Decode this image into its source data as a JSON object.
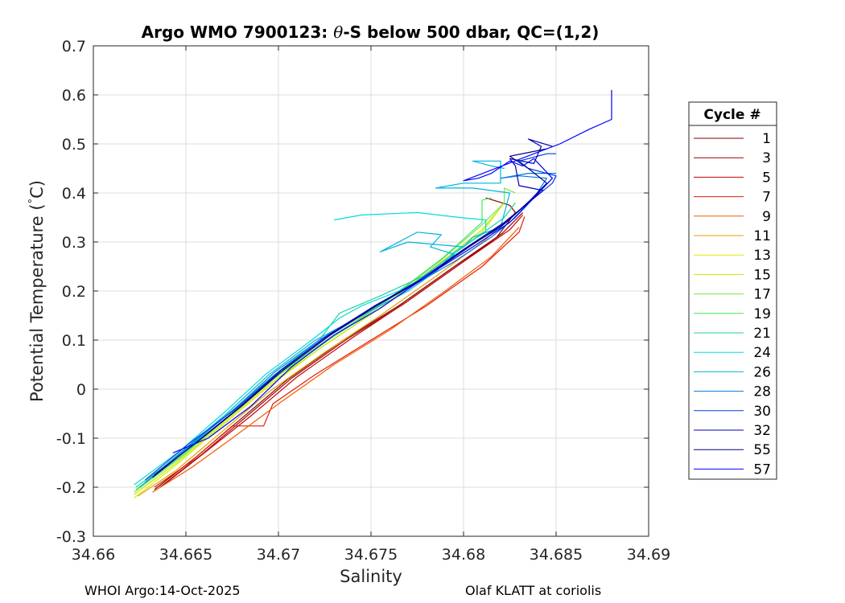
{
  "chart_data": {
    "type": "line",
    "title_prefix": "Argo WMO 7900123: ",
    "title_theta": "θ",
    "title_suffix": "-S below 500 dbar,  QC=(1,2)",
    "xlabel": "Salinity",
    "ylabel_prefix": "Potential Temperature (",
    "ylabel_degree": "°",
    "ylabel_suffix": "C)",
    "xlim": [
      34.66,
      34.69
    ],
    "ylim": [
      -0.3,
      0.7
    ],
    "xticks": [
      34.66,
      34.665,
      34.67,
      34.675,
      34.68,
      34.685,
      34.69
    ],
    "xtick_labels": [
      "34.66",
      "34.665",
      "34.67",
      "34.675",
      "34.68",
      "34.685",
      "34.69"
    ],
    "yticks": [
      -0.3,
      -0.2,
      -0.1,
      0,
      0.1,
      0.2,
      0.3,
      0.4,
      0.5,
      0.6,
      0.7
    ],
    "ytick_labels": [
      "-0.3",
      "-0.2",
      "-0.1",
      "0",
      "0.1",
      "0.2",
      "0.3",
      "0.4",
      "0.5",
      "0.6",
      "0.7"
    ],
    "grid": true,
    "legend_title": "Cycle #",
    "legend_position": "outside-right",
    "series": [
      {
        "name": "1",
        "color": "#800000",
        "points": [
          [
            34.6633,
            -0.205
          ],
          [
            34.6655,
            -0.14
          ],
          [
            34.668,
            -0.06
          ],
          [
            34.6705,
            0.02
          ],
          [
            34.6735,
            0.1
          ],
          [
            34.6765,
            0.17
          ],
          [
            34.6795,
            0.25
          ],
          [
            34.6818,
            0.31
          ],
          [
            34.6828,
            0.36
          ],
          [
            34.6825,
            0.375
          ],
          [
            34.6812,
            0.39
          ]
        ]
      },
      {
        "name": "3",
        "color": "#9b0000",
        "points": [
          [
            34.6636,
            -0.2
          ],
          [
            34.6658,
            -0.135
          ],
          [
            34.6682,
            -0.058
          ],
          [
            34.6707,
            0.022
          ],
          [
            34.6737,
            0.102
          ],
          [
            34.6767,
            0.172
          ],
          [
            34.6797,
            0.252
          ],
          [
            34.6821,
            0.318
          ],
          [
            34.6832,
            0.36
          ]
        ]
      },
      {
        "name": "5",
        "color": "#c80000",
        "points": [
          [
            34.6638,
            -0.195
          ],
          [
            34.666,
            -0.13
          ],
          [
            34.6685,
            -0.055
          ],
          [
            34.671,
            0.025
          ],
          [
            34.674,
            0.105
          ],
          [
            34.677,
            0.18
          ],
          [
            34.68,
            0.26
          ],
          [
            34.6825,
            0.325
          ],
          [
            34.6832,
            0.355
          ]
        ]
      },
      {
        "name": "7",
        "color": "#e41a00",
        "points": [
          [
            34.6633,
            -0.2
          ],
          [
            34.6652,
            -0.15
          ],
          [
            34.6675,
            -0.075
          ],
          [
            34.6692,
            -0.075
          ],
          [
            34.6697,
            -0.03
          ],
          [
            34.672,
            0.03
          ],
          [
            34.675,
            0.1
          ],
          [
            34.678,
            0.17
          ],
          [
            34.681,
            0.25
          ],
          [
            34.683,
            0.32
          ],
          [
            34.6833,
            0.352
          ]
        ]
      },
      {
        "name": "9",
        "color": "#f05a00",
        "points": [
          [
            34.6632,
            -0.21
          ],
          [
            34.6653,
            -0.16
          ],
          [
            34.6675,
            -0.1
          ],
          [
            34.67,
            -0.03
          ],
          [
            34.673,
            0.05
          ],
          [
            34.676,
            0.12
          ],
          [
            34.679,
            0.2
          ],
          [
            34.6815,
            0.27
          ],
          [
            34.683,
            0.33
          ]
        ]
      },
      {
        "name": "11",
        "color": "#e6a000",
        "points": [
          [
            34.6624,
            -0.218
          ],
          [
            34.6645,
            -0.165
          ],
          [
            34.667,
            -0.085
          ],
          [
            34.6695,
            -0.005
          ],
          [
            34.6725,
            0.075
          ],
          [
            34.6755,
            0.15
          ],
          [
            34.6785,
            0.23
          ],
          [
            34.6812,
            0.305
          ],
          [
            34.6825,
            0.35
          ]
        ]
      },
      {
        "name": "13",
        "color": "#e6e600",
        "points": [
          [
            34.6622,
            -0.222
          ],
          [
            34.6643,
            -0.16
          ],
          [
            34.6668,
            -0.08
          ],
          [
            34.6693,
            0.0
          ],
          [
            34.6723,
            0.085
          ],
          [
            34.6753,
            0.16
          ],
          [
            34.6783,
            0.245
          ],
          [
            34.681,
            0.32
          ],
          [
            34.6822,
            0.38
          ]
        ]
      },
      {
        "name": "15",
        "color": "#b4f000",
        "points": [
          [
            34.6622,
            -0.215
          ],
          [
            34.6645,
            -0.15
          ],
          [
            34.667,
            -0.07
          ],
          [
            34.6695,
            0.01
          ],
          [
            34.6725,
            0.09
          ],
          [
            34.6755,
            0.165
          ],
          [
            34.6785,
            0.25
          ],
          [
            34.681,
            0.325
          ],
          [
            34.682,
            0.37
          ]
        ]
      },
      {
        "name": "17",
        "color": "#7ce64b",
        "points": [
          [
            34.6622,
            -0.21
          ],
          [
            34.6647,
            -0.14
          ],
          [
            34.6672,
            -0.06
          ],
          [
            34.6697,
            0.02
          ],
          [
            34.6727,
            0.1
          ],
          [
            34.6757,
            0.175
          ],
          [
            34.6787,
            0.26
          ],
          [
            34.681,
            0.335
          ],
          [
            34.6822,
            0.38
          ],
          [
            34.6822,
            0.41
          ],
          [
            34.6828,
            0.4
          ]
        ]
      },
      {
        "name": "19",
        "color": "#46e65f",
        "points": [
          [
            34.6623,
            -0.205
          ],
          [
            34.6648,
            -0.135
          ],
          [
            34.6673,
            -0.055
          ],
          [
            34.6698,
            0.025
          ],
          [
            34.6728,
            0.105
          ],
          [
            34.6758,
            0.18
          ],
          [
            34.6788,
            0.265
          ],
          [
            34.681,
            0.34
          ],
          [
            34.681,
            0.385
          ],
          [
            34.6815,
            0.39
          ]
        ]
      },
      {
        "name": "21",
        "color": "#1ed2a0",
        "points": [
          [
            34.6623,
            -0.2
          ],
          [
            34.6648,
            -0.13
          ],
          [
            34.6673,
            -0.05
          ],
          [
            34.6698,
            0.03
          ],
          [
            34.6722,
            0.1
          ],
          [
            34.6733,
            0.155
          ],
          [
            34.6755,
            0.19
          ],
          [
            34.6778,
            0.23
          ],
          [
            34.68,
            0.29
          ],
          [
            34.6822,
            0.35
          ],
          [
            34.6828,
            0.38
          ]
        ]
      },
      {
        "name": "24",
        "color": "#00dcdc",
        "points": [
          [
            34.6622,
            -0.195
          ],
          [
            34.6647,
            -0.125
          ],
          [
            34.667,
            -0.05
          ],
          [
            34.6693,
            0.03
          ],
          [
            34.6718,
            0.1
          ],
          [
            34.6733,
            0.145
          ],
          [
            34.6745,
            0.17
          ],
          [
            34.6765,
            0.2
          ],
          [
            34.6785,
            0.24
          ],
          [
            34.6795,
            0.28
          ],
          [
            34.6812,
            0.32
          ],
          [
            34.6812,
            0.345
          ],
          [
            34.6798,
            0.35
          ],
          [
            34.6775,
            0.36
          ],
          [
            34.6745,
            0.355
          ],
          [
            34.673,
            0.345
          ]
        ]
      },
      {
        "name": "26",
        "color": "#00b4dc",
        "points": [
          [
            34.6625,
            -0.2
          ],
          [
            34.665,
            -0.12
          ],
          [
            34.6672,
            -0.05
          ],
          [
            34.6695,
            0.03
          ],
          [
            34.672,
            0.1
          ],
          [
            34.6745,
            0.15
          ],
          [
            34.677,
            0.2
          ],
          [
            34.6785,
            0.24
          ],
          [
            34.6795,
            0.275
          ],
          [
            34.6782,
            0.29
          ],
          [
            34.6788,
            0.315
          ],
          [
            34.6775,
            0.32
          ],
          [
            34.6755,
            0.28
          ],
          [
            34.677,
            0.3
          ],
          [
            34.68,
            0.29
          ],
          [
            34.6805,
            0.31
          ],
          [
            34.682,
            0.33
          ],
          [
            34.6825,
            0.4
          ],
          [
            34.6805,
            0.41
          ],
          [
            34.6785,
            0.41
          ],
          [
            34.68,
            0.42
          ],
          [
            34.682,
            0.42
          ],
          [
            34.682,
            0.465
          ],
          [
            34.6805,
            0.465
          ],
          [
            34.6815,
            0.455
          ],
          [
            34.6822,
            0.45
          ]
        ]
      },
      {
        "name": "28",
        "color": "#0078e6",
        "points": [
          [
            34.6628,
            -0.19
          ],
          [
            34.6652,
            -0.115
          ],
          [
            34.6675,
            -0.045
          ],
          [
            34.6698,
            0.035
          ],
          [
            34.6722,
            0.1
          ],
          [
            34.6748,
            0.16
          ],
          [
            34.6772,
            0.21
          ],
          [
            34.6795,
            0.26
          ],
          [
            34.6815,
            0.31
          ],
          [
            34.6828,
            0.35
          ],
          [
            34.6838,
            0.39
          ],
          [
            34.6845,
            0.43
          ],
          [
            34.683,
            0.435
          ],
          [
            34.682,
            0.43
          ],
          [
            34.6835,
            0.44
          ],
          [
            34.685,
            0.44
          ]
        ]
      },
      {
        "name": "30",
        "color": "#003cdc",
        "points": [
          [
            34.6628,
            -0.185
          ],
          [
            34.6652,
            -0.11
          ],
          [
            34.6677,
            -0.04
          ],
          [
            34.67,
            0.035
          ],
          [
            34.6725,
            0.105
          ],
          [
            34.675,
            0.165
          ],
          [
            34.6775,
            0.22
          ],
          [
            34.68,
            0.285
          ],
          [
            34.682,
            0.33
          ],
          [
            34.6835,
            0.38
          ],
          [
            34.6848,
            0.42
          ],
          [
            34.685,
            0.435
          ],
          [
            34.6835,
            0.45
          ],
          [
            34.683,
            0.465
          ],
          [
            34.6845,
            0.48
          ],
          [
            34.685,
            0.48
          ]
        ]
      },
      {
        "name": "32",
        "color": "#0000b4",
        "points": [
          [
            34.6632,
            -0.18
          ],
          [
            34.6655,
            -0.11
          ],
          [
            34.6678,
            -0.04
          ],
          [
            34.6702,
            0.04
          ],
          [
            34.6727,
            0.11
          ],
          [
            34.6752,
            0.17
          ],
          [
            34.6778,
            0.225
          ],
          [
            34.6802,
            0.29
          ],
          [
            34.6822,
            0.34
          ],
          [
            34.6835,
            0.38
          ],
          [
            34.6843,
            0.405
          ],
          [
            34.683,
            0.415
          ],
          [
            34.6828,
            0.455
          ],
          [
            34.6825,
            0.47
          ],
          [
            34.6838,
            0.46
          ],
          [
            34.6842,
            0.495
          ],
          [
            34.6835,
            0.51
          ],
          [
            34.6848,
            0.495
          ]
        ]
      },
      {
        "name": "55",
        "color": "#000080",
        "points": [
          [
            34.6633,
            -0.175
          ],
          [
            34.6657,
            -0.105
          ],
          [
            34.668,
            -0.035
          ],
          [
            34.6703,
            0.04
          ],
          [
            34.6728,
            0.11
          ],
          [
            34.6753,
            0.17
          ],
          [
            34.6778,
            0.225
          ],
          [
            34.6803,
            0.29
          ],
          [
            34.6823,
            0.34
          ],
          [
            34.6836,
            0.385
          ],
          [
            34.6845,
            0.42
          ],
          [
            34.6835,
            0.45
          ],
          [
            34.6825,
            0.475
          ],
          [
            34.6845,
            0.49
          ]
        ]
      },
      {
        "name": "57",
        "color": "#0000ff",
        "points": [
          [
            34.6643,
            -0.13
          ],
          [
            34.6662,
            -0.1
          ],
          [
            34.6685,
            -0.035
          ],
          [
            34.6707,
            0.045
          ],
          [
            34.673,
            0.11
          ],
          [
            34.6755,
            0.165
          ],
          [
            34.678,
            0.23
          ],
          [
            34.6805,
            0.29
          ],
          [
            34.6825,
            0.34
          ],
          [
            34.6838,
            0.39
          ],
          [
            34.6848,
            0.43
          ],
          [
            34.6838,
            0.47
          ],
          [
            34.6832,
            0.455
          ],
          [
            34.6825,
            0.465
          ],
          [
            34.6815,
            0.44
          ],
          [
            34.6808,
            0.43
          ],
          [
            34.68,
            0.425
          ],
          [
            34.6845,
            0.49
          ],
          [
            34.6852,
            0.5
          ],
          [
            34.6868,
            0.53
          ],
          [
            34.688,
            0.55
          ],
          [
            34.688,
            0.61
          ]
        ]
      }
    ]
  },
  "footer": {
    "left": "WHOI Argo:14-Oct-2025",
    "right": "Olaf KLATT at coriolis"
  }
}
